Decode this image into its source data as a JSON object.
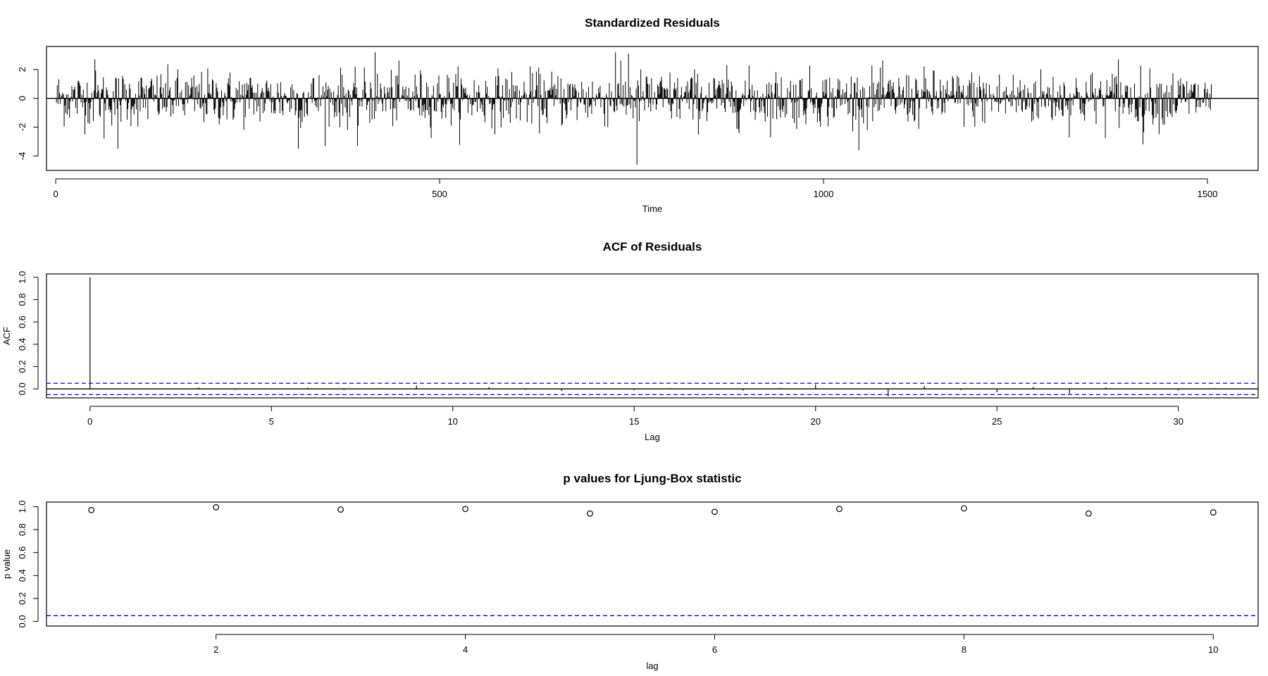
{
  "chart_data": [
    {
      "type": "line",
      "title": "Standardized Residuals",
      "xlabel": "Time",
      "ylabel": "",
      "xlim": [
        -12,
        1566
      ],
      "ylim": [
        -5,
        3.6
      ],
      "xticks": [
        0,
        500,
        1000,
        1500
      ],
      "yticks": [
        -4,
        -2,
        0,
        2
      ],
      "ytick_labels": [
        "-4",
        "-2",
        "0",
        "2"
      ],
      "n_points": 1505,
      "value_range": [
        -4.6,
        3.2
      ],
      "render": "vertical bars from 0 (type h), with horizontal line at 0",
      "notable_values": [
        {
          "x": 50,
          "y": 2.7
        },
        {
          "x": 62,
          "y": -2.8
        },
        {
          "x": 80,
          "y": -3.5
        },
        {
          "x": 315,
          "y": -3.5
        },
        {
          "x": 415,
          "y": 3.2
        },
        {
          "x": 392,
          "y": -3.3
        },
        {
          "x": 728,
          "y": 3.2
        },
        {
          "x": 745,
          "y": 3.1
        },
        {
          "x": 756,
          "y": -4.6
        },
        {
          "x": 1383,
          "y": 2.7
        },
        {
          "x": 1415,
          "y": -3.2
        }
      ]
    },
    {
      "type": "bar",
      "title": "ACF of Residuals",
      "xlabel": "Lag",
      "ylabel": "ACF",
      "xlim": [
        -1.2,
        32.2
      ],
      "ylim": [
        -0.08,
        1.03
      ],
      "xticks": [
        0,
        5,
        10,
        15,
        20,
        25,
        30
      ],
      "yticks": [
        0.0,
        0.2,
        0.4,
        0.6,
        0.8,
        1.0
      ],
      "ytick_labels": [
        "0.0",
        "0.2",
        "0.4",
        "0.6",
        "0.8",
        "1.0"
      ],
      "lags": [
        0,
        1,
        2,
        3,
        4,
        5,
        6,
        7,
        8,
        9,
        10,
        11,
        12,
        13,
        14,
        15,
        16,
        17,
        18,
        19,
        20,
        21,
        22,
        23,
        24,
        25,
        26,
        27,
        28,
        29,
        30,
        31
      ],
      "values": [
        1.0,
        -0.004,
        -0.003,
        0.012,
        -0.008,
        -0.006,
        0.01,
        -0.01,
        0.006,
        0.03,
        -0.005,
        0.015,
        -0.008,
        -0.018,
        0.004,
        -0.01,
        0.006,
        -0.006,
        -0.015,
        0.008,
        0.04,
        -0.004,
        -0.065,
        0.025,
        -0.01,
        -0.03,
        0.018,
        -0.045,
        0.012,
        -0.006,
        -0.012,
        0.006
      ],
      "conf_band": [
        -0.051,
        0.051
      ],
      "conf_color": "#0000ff"
    },
    {
      "type": "scatter",
      "title": "p values for Ljung-Box statistic",
      "xlabel": "lag",
      "ylabel": "p value",
      "xlim": [
        0.64,
        10.36
      ],
      "ylim": [
        -0.04,
        1.04
      ],
      "xticks": [
        2,
        4,
        6,
        8,
        10
      ],
      "yticks": [
        0.0,
        0.2,
        0.4,
        0.6,
        0.8,
        1.0
      ],
      "ytick_labels": [
        "0.0",
        "0.2",
        "0.4",
        "0.6",
        "0.8",
        "1.0"
      ],
      "x": [
        1,
        2,
        3,
        4,
        5,
        6,
        7,
        8,
        9,
        10
      ],
      "y": [
        0.97,
        0.995,
        0.975,
        0.98,
        0.94,
        0.955,
        0.98,
        0.985,
        0.94,
        0.95
      ],
      "ref_line": 0.05,
      "ref_color": "#0000ff"
    }
  ]
}
